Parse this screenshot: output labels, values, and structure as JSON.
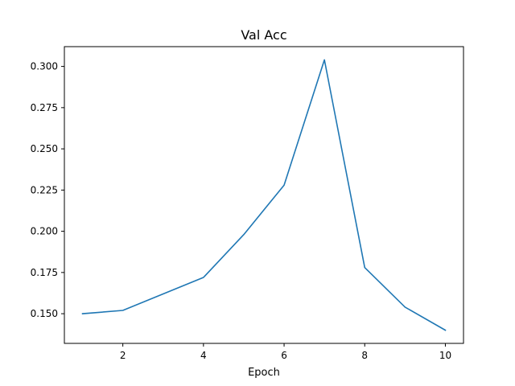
{
  "chart_data": {
    "type": "line",
    "title": "Val Acc",
    "xlabel": "Epoch",
    "ylabel": "",
    "x": [
      1,
      2,
      3,
      4,
      5,
      6,
      7,
      8,
      9,
      10
    ],
    "series": [
      {
        "values": [
          0.15,
          0.152,
          0.162,
          0.172,
          0.198,
          0.228,
          0.304,
          0.178,
          0.154,
          0.14
        ],
        "color": "#1f77b4"
      }
    ],
    "xlim": [
      0.55,
      10.45
    ],
    "ylim": [
      0.132,
      0.312
    ],
    "xticks": [
      2,
      4,
      6,
      8,
      10
    ],
    "xtick_labels": [
      "2",
      "4",
      "6",
      "8",
      "10"
    ],
    "yticks": [
      0.15,
      0.175,
      0.2,
      0.225,
      0.25,
      0.275,
      0.3
    ],
    "ytick_labels": [
      "0.150",
      "0.175",
      "0.200",
      "0.225",
      "0.250",
      "0.275",
      "0.300"
    ],
    "grid": false,
    "legend": "none"
  }
}
